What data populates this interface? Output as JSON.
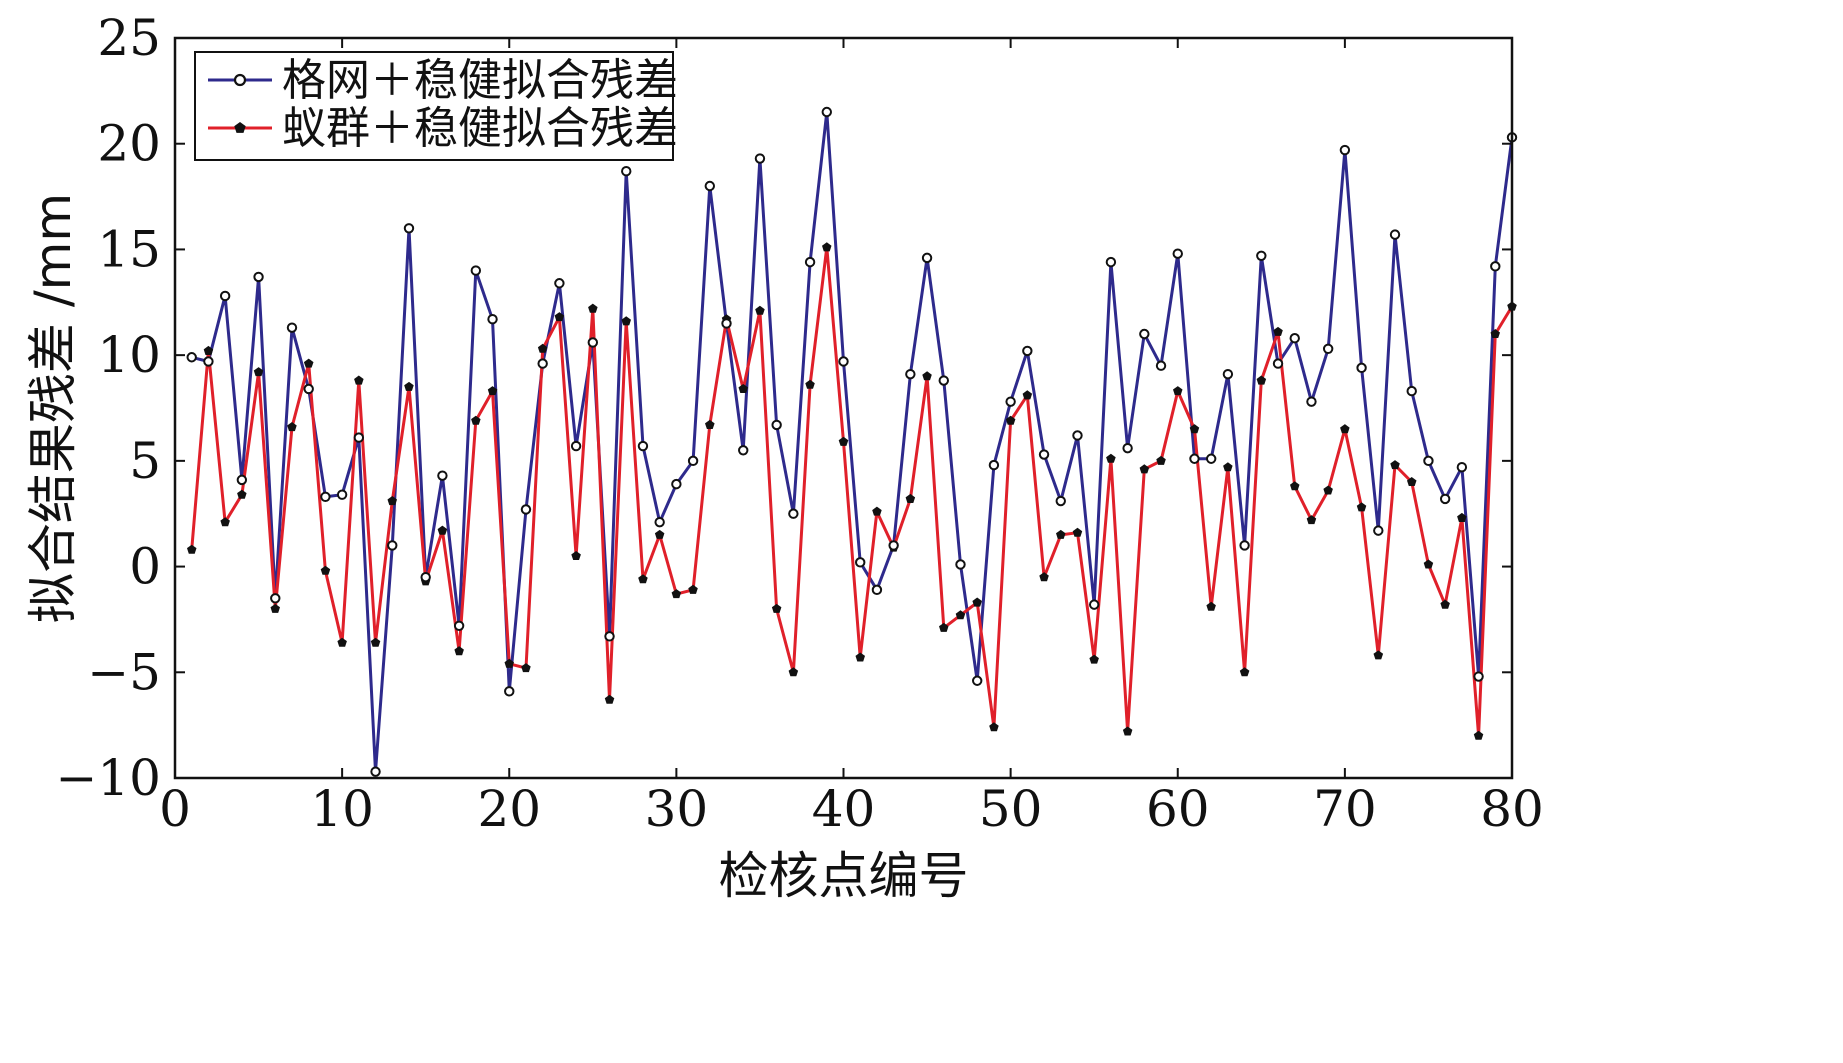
{
  "chart_data": {
    "type": "line",
    "xlabel": "检核点编号",
    "ylabel": "拟合结果残差 /mm",
    "xlim": [
      0,
      80
    ],
    "ylim": [
      -10,
      25
    ],
    "xticks": [
      0,
      10,
      20,
      30,
      40,
      50,
      60,
      70,
      80
    ],
    "yticks": [
      -10,
      -5,
      0,
      5,
      10,
      15,
      20,
      25
    ],
    "xtick_labels": [
      "0",
      "10",
      "20",
      "30",
      "40",
      "50",
      "60",
      "70",
      "80"
    ],
    "ytick_labels": [
      "−10",
      "−5",
      "0",
      "5",
      "10",
      "15",
      "20",
      "25"
    ],
    "grid": false,
    "legend_position": "top-left",
    "x": [
      1,
      2,
      3,
      4,
      5,
      6,
      7,
      8,
      9,
      10,
      11,
      12,
      13,
      14,
      15,
      16,
      17,
      18,
      19,
      20,
      21,
      22,
      23,
      24,
      25,
      26,
      27,
      28,
      29,
      30,
      31,
      32,
      33,
      34,
      35,
      36,
      37,
      38,
      39,
      40,
      41,
      42,
      43,
      44,
      45,
      46,
      47,
      48,
      49,
      50,
      51,
      52,
      53,
      54,
      55,
      56,
      57,
      58,
      59,
      60,
      61,
      62,
      63,
      64,
      65,
      66,
      67,
      68,
      69,
      70,
      71,
      72,
      73,
      74,
      75,
      76,
      77,
      78,
      79,
      80
    ],
    "series": [
      {
        "name": "格网＋稳健拟合残差",
        "color": "#2e2a8c",
        "marker": "open-circle",
        "values": [
          9.9,
          9.7,
          12.8,
          4.1,
          13.7,
          -1.5,
          11.3,
          8.4,
          3.3,
          3.4,
          6.1,
          -9.7,
          1.0,
          16.0,
          -0.5,
          4.3,
          -2.8,
          14.0,
          11.7,
          -5.9,
          2.7,
          9.6,
          13.4,
          5.7,
          10.6,
          -3.3,
          18.7,
          5.7,
          2.1,
          3.9,
          5.0,
          18.0,
          11.5,
          5.5,
          19.3,
          6.7,
          2.5,
          14.4,
          21.5,
          9.7,
          0.2,
          -1.1,
          1.0,
          9.1,
          14.6,
          8.8,
          0.1,
          -5.4,
          4.8,
          7.8,
          10.2,
          5.3,
          3.1,
          6.2,
          -1.8,
          14.4,
          5.6,
          11.0,
          9.5,
          14.8,
          5.1,
          5.1,
          9.1,
          1.0,
          14.7,
          9.6,
          10.8,
          7.8,
          10.3,
          19.7,
          9.4,
          1.7,
          15.7,
          8.3,
          5.0,
          3.2,
          4.7,
          -5.2,
          14.2,
          20.3
        ]
      },
      {
        "name": "蚁群＋稳健拟合残差",
        "color": "#e0202a",
        "marker": "filled-pentagon",
        "values": [
          0.8,
          10.2,
          2.1,
          3.4,
          9.2,
          -2.0,
          6.6,
          9.6,
          -0.2,
          -3.6,
          8.8,
          -3.6,
          3.1,
          8.5,
          -0.7,
          1.7,
          -4.0,
          6.9,
          8.3,
          -4.6,
          -4.8,
          10.3,
          11.8,
          0.5,
          12.2,
          -6.3,
          11.6,
          -0.6,
          1.5,
          -1.3,
          -1.1,
          6.7,
          11.7,
          8.4,
          12.1,
          -2.0,
          -5.0,
          8.6,
          15.1,
          5.9,
          -4.3,
          2.6,
          0.9,
          3.2,
          9.0,
          -2.9,
          -2.3,
          -1.7,
          -7.6,
          6.9,
          8.1,
          -0.5,
          1.5,
          1.6,
          -4.4,
          5.1,
          -7.8,
          4.6,
          5.0,
          8.3,
          6.5,
          -1.9,
          4.7,
          -5.0,
          8.8,
          11.1,
          3.8,
          2.2,
          3.6,
          6.5,
          2.8,
          -4.2,
          4.8,
          4.0,
          0.1,
          -1.8,
          2.3,
          -8.0,
          11.0,
          12.3
        ]
      }
    ]
  }
}
